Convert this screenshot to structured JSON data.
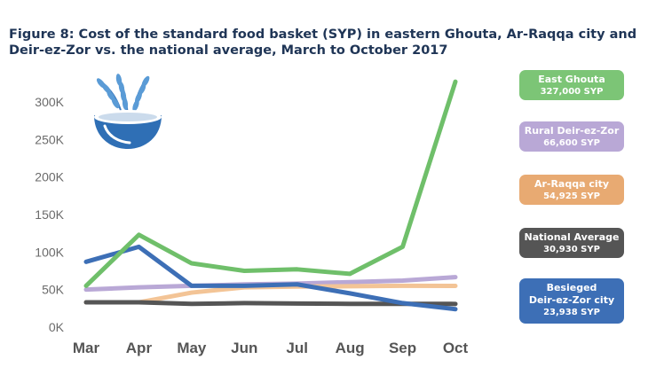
{
  "title": "Figure 8: Cost of the standard food basket (SYP) in eastern Ghouta, Ar-Raqqa city and Deir-ez-Zor vs. the national average, March to October 2017",
  "icon": "wheat-bowl-icon",
  "legend": [
    {
      "name": "East Ghouta",
      "value": "327,000 SYP",
      "color": "#7cc576"
    },
    {
      "name": "Rural Deir-ez-Zor",
      "value": "66,600 SYP",
      "color": "#b9a8d6"
    },
    {
      "name": "Ar-Raqqa city",
      "value": "54,925 SYP",
      "color": "#e8aa72"
    },
    {
      "name": "National Average",
      "value": "30,930 SYP",
      "color": "#555555"
    },
    {
      "name": "Besieged\nDeir-ez-Zor city",
      "value": "23,938 SYP",
      "color": "#3d6fb6"
    }
  ],
  "chart_data": {
    "type": "line",
    "title": "Figure 8: Cost of the standard food basket (SYP) in eastern Ghouta, Ar-Raqqa city and Deir-ez-Zor vs. the national average, March to October 2017",
    "xlabel": "",
    "ylabel": "",
    "categories": [
      "Mar",
      "Apr",
      "May",
      "Jun",
      "Jul",
      "Aug",
      "Sep",
      "Oct"
    ],
    "y_ticks": [
      "0K",
      "50K",
      "100K",
      "150K",
      "200K",
      "250K",
      "300K"
    ],
    "ylim": [
      0,
      330000
    ],
    "grid": false,
    "legend_position": "right",
    "series": [
      {
        "name": "Rural Deir-ez-Zor",
        "color": "#b9a8d6",
        "values": [
          50000,
          53000,
          55000,
          57000,
          58000,
          60000,
          62000,
          66600
        ]
      },
      {
        "name": "Ar-Raqqa city",
        "color": "#f3c496",
        "values": [
          33000,
          33000,
          46000,
          53000,
          54000,
          54500,
          55000,
          54925
        ]
      },
      {
        "name": "National Average",
        "color": "#555555",
        "values": [
          33000,
          33000,
          31000,
          32000,
          31500,
          31000,
          31000,
          30930
        ]
      },
      {
        "name": "Besieged Deir-ez-Zor city",
        "color": "#3d6fb6",
        "values": [
          87000,
          107000,
          55000,
          55000,
          57000,
          45000,
          32000,
          23938
        ]
      },
      {
        "name": "East Ghouta",
        "color": "#6fbf6a",
        "values": [
          55000,
          123000,
          85000,
          75000,
          77000,
          71000,
          107000,
          327000
        ]
      }
    ]
  }
}
